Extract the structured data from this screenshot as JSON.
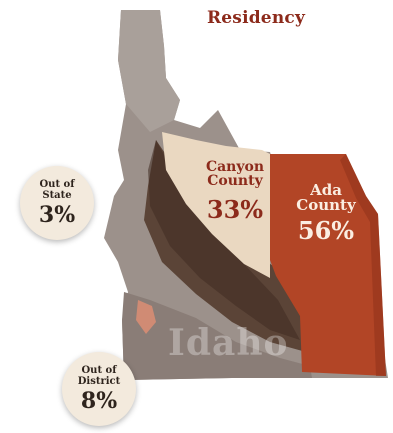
{
  "title": "Residency",
  "map": {
    "watermark": "Idaho",
    "colors": {
      "state": "#9c918b",
      "state_light": "#b3aaa4",
      "shadow_band": "#5b4437",
      "shadow_band_dark": "#3f2c22",
      "canyon": "#ead8c1",
      "ada": "#b24526",
      "district": "#7d6f69",
      "out_of_district_area": "#d08b74"
    },
    "regions": {
      "canyon_county": {
        "name": "Canyon County",
        "name_line1": "Canyon",
        "name_line2": "County",
        "percent": "33%",
        "value": 33
      },
      "ada_county": {
        "name": "Ada County",
        "name_line1": "Ada",
        "name_line2": "County",
        "percent": "56%",
        "value": 56
      }
    }
  },
  "bubbles": {
    "out_of_state": {
      "line1": "Out of",
      "line2": "State",
      "percent": "3%",
      "value": 3
    },
    "out_of_district": {
      "line1": "Out of",
      "line2": "District",
      "percent": "8%",
      "value": 8
    }
  }
}
